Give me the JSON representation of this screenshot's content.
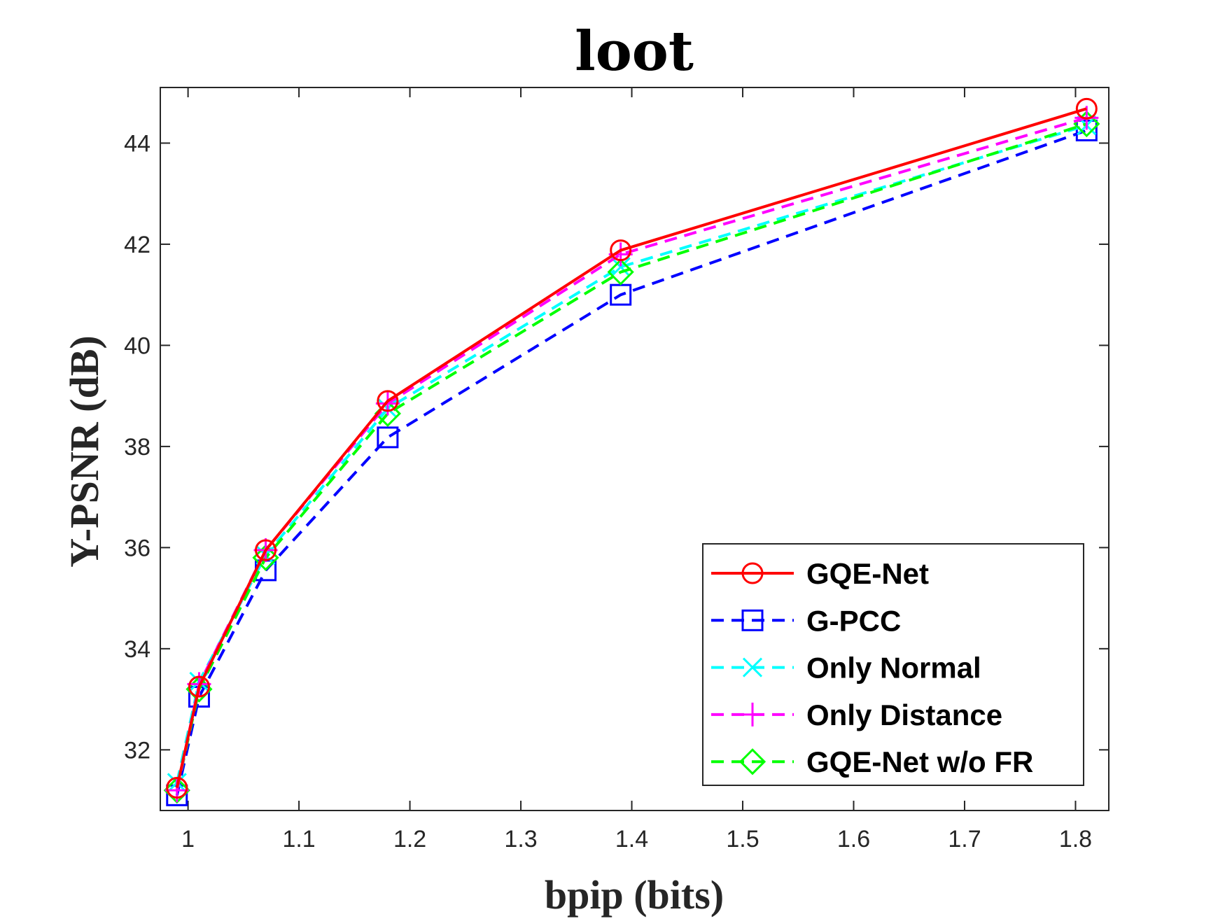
{
  "chart_data": {
    "type": "line",
    "title": "loot",
    "xlabel": "bpip (bits)",
    "ylabel": "Y-PSNR (dB)",
    "xlim": [
      0.975,
      1.83
    ],
    "ylim": [
      30.8,
      45.1
    ],
    "xticks": [
      1,
      1.1,
      1.2,
      1.3,
      1.4,
      1.5,
      1.6,
      1.7,
      1.8
    ],
    "xtick_labels": [
      "1",
      "1.1",
      "1.2",
      "1.3",
      "1.4",
      "1.5",
      "1.6",
      "1.7",
      "1.8"
    ],
    "yticks": [
      32,
      34,
      36,
      38,
      40,
      42,
      44
    ],
    "ytick_labels": [
      "32",
      "34",
      "36",
      "38",
      "40",
      "42",
      "44"
    ],
    "grid": false,
    "legend_position": "bottom-right",
    "x": [
      0.99,
      1.01,
      1.07,
      1.18,
      1.39,
      1.81
    ],
    "series": [
      {
        "name": "GQE-Net",
        "color": "#ff0000",
        "dash": "solid",
        "marker": "circle",
        "values": [
          31.25,
          33.25,
          35.95,
          38.9,
          41.88,
          44.68
        ]
      },
      {
        "name": "G-PCC",
        "color": "#0000ff",
        "dash": "dashed",
        "marker": "square",
        "values": [
          31.1,
          33.05,
          35.55,
          38.18,
          41.0,
          44.25
        ]
      },
      {
        "name": "Only Normal",
        "color": "#00ffff",
        "dash": "dashed",
        "marker": "x",
        "values": [
          31.35,
          33.35,
          35.85,
          38.75,
          41.55,
          44.35
        ]
      },
      {
        "name": "Only Distance",
        "color": "#ff00ff",
        "dash": "dashed",
        "marker": "plus",
        "values": [
          31.2,
          33.3,
          35.95,
          38.85,
          41.8,
          44.5
        ]
      },
      {
        "name": "GQE-Net w/o FR",
        "color": "#00ff00",
        "dash": "dashed",
        "marker": "diamond",
        "values": [
          31.2,
          33.2,
          35.8,
          38.65,
          41.45,
          44.38
        ]
      }
    ]
  }
}
